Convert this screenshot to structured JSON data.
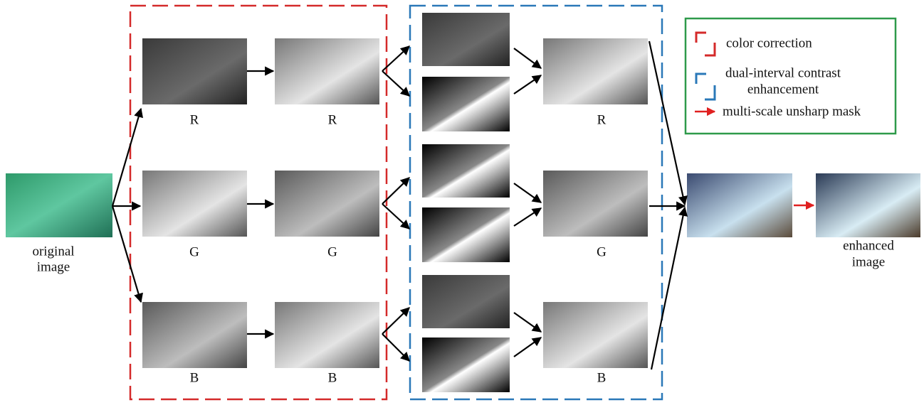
{
  "original": [
    "original",
    "image"
  ],
  "enhanced": [
    "enhanced",
    "image"
  ],
  "color_correction": {
    "split_labels": [
      "R",
      "G",
      "B"
    ],
    "stretched_labels": [
      "R",
      "G",
      "B"
    ]
  },
  "contrast_enhancement": {
    "output_labels": [
      "R",
      "G",
      "B"
    ]
  },
  "legend": {
    "items": [
      {
        "label": [
          "color correction"
        ]
      },
      {
        "label": [
          "dual-interval contrast",
          "enhancement"
        ]
      },
      {
        "label": [
          "multi-scale unsharp mask"
        ]
      }
    ]
  }
}
